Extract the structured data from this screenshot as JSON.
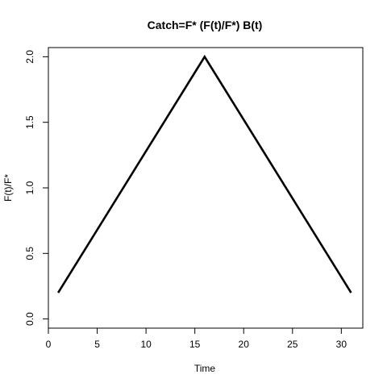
{
  "chart_data": {
    "type": "line",
    "title": "Catch=F* (F(t)/F*) B(t)",
    "xlabel": "Time",
    "ylabel": "F(t)/F*",
    "xlim": [
      0,
      32.2
    ],
    "ylim": [
      -0.07,
      2.07
    ],
    "x_ticks": [
      0,
      5,
      10,
      15,
      20,
      25,
      30
    ],
    "y_ticks": [
      0.0,
      0.5,
      1.0,
      1.5,
      2.0
    ],
    "x_tick_labels": [
      "0",
      "5",
      "10",
      "15",
      "20",
      "25",
      "30"
    ],
    "y_tick_labels": [
      "0.0",
      "0.5",
      "1.0",
      "1.5",
      "2.0"
    ],
    "grid": false,
    "series": [
      {
        "color": "#000000",
        "x": [
          1,
          16,
          31
        ],
        "y": [
          0.2,
          2.0,
          0.2
        ]
      }
    ]
  }
}
